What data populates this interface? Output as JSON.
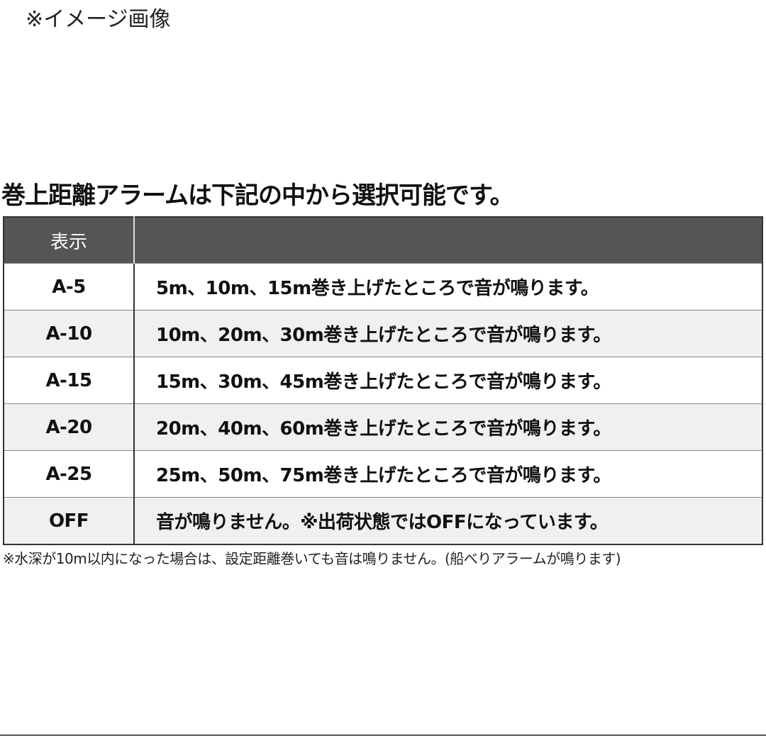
{
  "image_note": "※イメージ画像",
  "title": "巻上距離アラームは下記の中から選択可能です。",
  "table": {
    "headers": [
      "表示",
      ""
    ],
    "rows": [
      {
        "code": "A-5",
        "desc": "5m、10m、15m巻き上げたところで音が鳴ります。"
      },
      {
        "code": "A-10",
        "desc": "10m、20m、30m巻き上げたところで音が鳴ります。"
      },
      {
        "code": "A-15",
        "desc": "15m、30m、45m巻き上げたところで音が鳴ります。"
      },
      {
        "code": "A-20",
        "desc": "20m、40m、60m巻き上げたところで音が鳴ります。"
      },
      {
        "code": "A-25",
        "desc": "25m、50m、75m巻き上げたところで音が鳴ります。"
      },
      {
        "code": "OFF",
        "desc": "音が鳴りません。※出荷状態ではOFFになっています。"
      }
    ]
  },
  "footnote": "※水深が10m以内になった場合は、設定距離巻いても音は鳴りません。(船べりアラームが鳴ります)"
}
